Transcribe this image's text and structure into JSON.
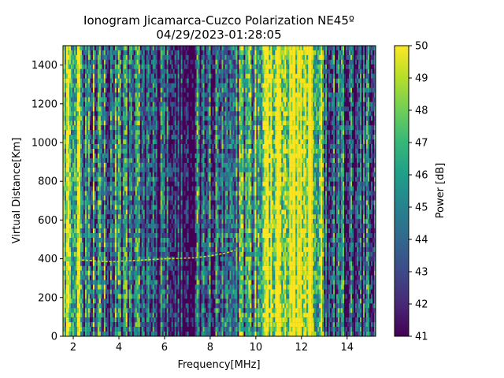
{
  "chart_data": {
    "type": "heatmap",
    "title": "Ionogram Jicamarca-Cuzco Polarization NE45º",
    "subtitle": "04/29/2023-01:28:05",
    "xlabel": "Frequency[MHz]",
    "ylabel": "Virtual Distance[Km]",
    "xlim": [
      1.55,
      15.25
    ],
    "ylim": [
      0,
      1500
    ],
    "xticks": [
      2,
      4,
      6,
      8,
      10,
      12,
      14
    ],
    "yticks": [
      0,
      200,
      400,
      600,
      800,
      1000,
      1200,
      1400
    ],
    "colorbar": {
      "label": "Power [dB]",
      "range": [
        41,
        50
      ],
      "ticks": [
        41,
        42,
        43,
        44,
        45,
        46,
        47,
        48,
        49,
        50
      ],
      "colormap": "viridis",
      "colors": [
        "#440154",
        "#482878",
        "#3e4989",
        "#31688e",
        "#26828e",
        "#1f9e89",
        "#35b779",
        "#6ece58",
        "#b5de2b",
        "#fde725"
      ]
    },
    "frequency_bands": [
      {
        "range": [
          1.55,
          2.3
        ],
        "level": 0.85
      },
      {
        "range": [
          2.3,
          3.5
        ],
        "level": 0.45
      },
      {
        "range": [
          3.5,
          5.0
        ],
        "level": 0.35
      },
      {
        "range": [
          5.0,
          6.4
        ],
        "level": 0.25
      },
      {
        "range": [
          6.4,
          7.4
        ],
        "level": 0.05
      },
      {
        "range": [
          7.4,
          8.6
        ],
        "level": 0.3
      },
      {
        "range": [
          8.6,
          9.3
        ],
        "level": 0.4
      },
      {
        "range": [
          9.3,
          10.3
        ],
        "level": 0.5
      },
      {
        "range": [
          10.3,
          12.5
        ],
        "level": 0.96
      },
      {
        "range": [
          12.5,
          13.0
        ],
        "level": 0.7
      },
      {
        "range": [
          13.0,
          14.2
        ],
        "level": 0.3
      },
      {
        "range": [
          14.2,
          15.25
        ],
        "level": 0.2
      }
    ],
    "echo_trace": [
      {
        "x": 2.2,
        "y": 395
      },
      {
        "x": 3.5,
        "y": 385
      },
      {
        "x": 4.5,
        "y": 390
      },
      {
        "x": 6.0,
        "y": 400
      },
      {
        "x": 7.3,
        "y": 405
      },
      {
        "x": 8.0,
        "y": 415
      },
      {
        "x": 8.7,
        "y": 430
      },
      {
        "x": 9.1,
        "y": 445
      }
    ]
  }
}
